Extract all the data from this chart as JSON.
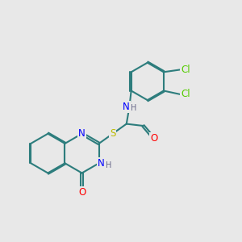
{
  "background_color": "#e8e8e8",
  "bond_color": "#2d7d7d",
  "bond_width": 1.5,
  "atom_colors": {
    "N": "#0000ff",
    "O": "#ff0000",
    "S": "#bbbb00",
    "Cl": "#55cc00",
    "H_label": "#666688"
  },
  "font_size_atoms": 8.5,
  "font_size_small": 7.0,
  "doffset": 0.045
}
